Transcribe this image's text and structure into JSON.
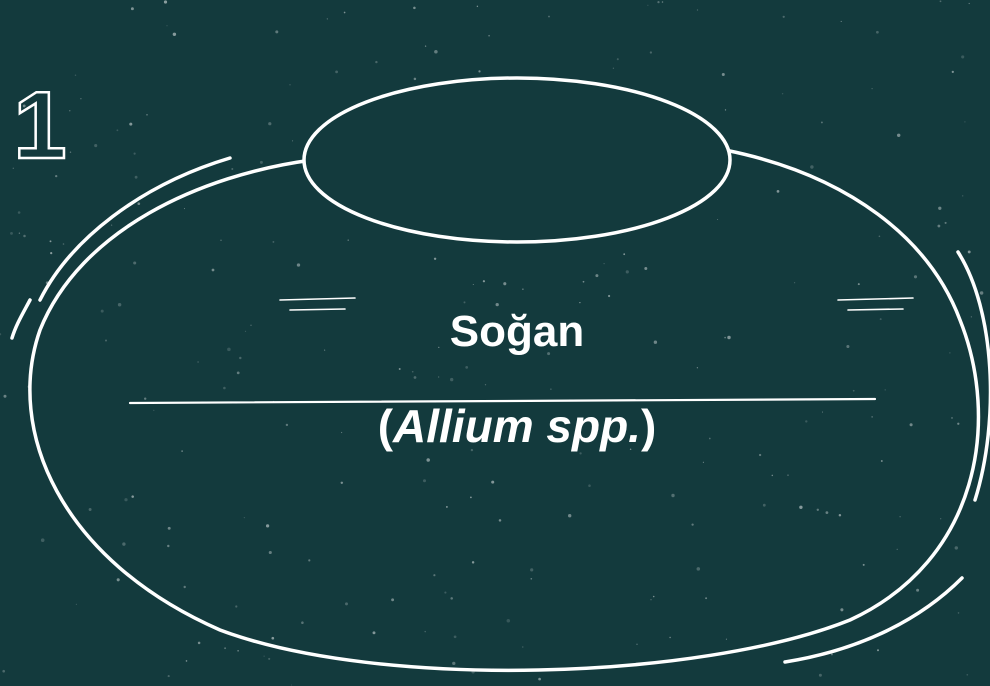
{
  "number": "1",
  "title": "Soğan",
  "subtitle": {
    "open": "(",
    "name": "Allium spp.",
    "close": ")"
  }
}
